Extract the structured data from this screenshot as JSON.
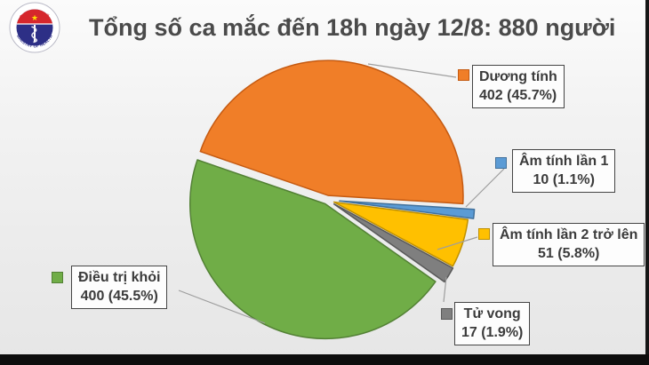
{
  "header": {
    "title": "Tổng số ca mắc đến 18h ngày 12/8: 880 người"
  },
  "logo": {
    "top_text": "BỘ Y TẾ",
    "bottom_text": "MINISTRY OF HEALTH",
    "flag_color": "#d6272c",
    "star_color": "#ffde00",
    "disc_color": "#2d2f86"
  },
  "chart_data": {
    "type": "pie",
    "title": "Tổng số ca mắc đến 18h ngày 12/8: 880 người",
    "total": 880,
    "legend_position": "outside-callouts",
    "segments": [
      {
        "label": "Dương tính",
        "value": 402,
        "pct": 45.7,
        "value_label": "402 (45.7%)",
        "color": "#F07E28",
        "border": "#C55A11"
      },
      {
        "label": "Âm tính lần 1",
        "value": 10,
        "pct": 1.1,
        "value_label": "10 (1.1%)",
        "color": "#5B9BD5",
        "border": "#41719C"
      },
      {
        "label": "Âm tính lần 2 trở lên",
        "value": 51,
        "pct": 5.8,
        "value_label": "51 (5.8%)",
        "color": "#FFC000",
        "border": "#BF9000"
      },
      {
        "label": "Tử vong",
        "value": 17,
        "pct": 1.9,
        "value_label": "17 (1.9%)",
        "color": "#7F7F7F",
        "border": "#595959"
      },
      {
        "label": "Điều trị khỏi",
        "value": 400,
        "pct": 45.5,
        "value_label": "400 (45.5%)",
        "color": "#70AD47",
        "border": "#538135"
      }
    ]
  }
}
